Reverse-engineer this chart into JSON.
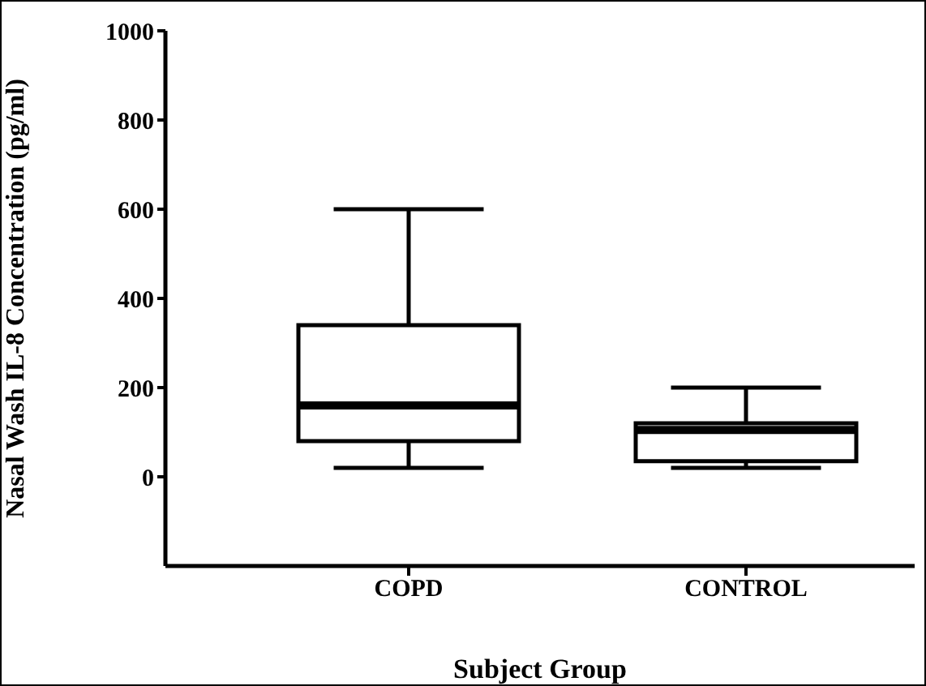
{
  "chart_data": {
    "type": "box",
    "xlabel": "Subject Group",
    "ylabel": "Nasal Wash IL-8 Concentration (pg/ml)",
    "categories": [
      "COPD",
      "CONTROL"
    ],
    "color": "#000000",
    "boxes": [
      {
        "low": 20,
        "q1": 80,
        "median": 160,
        "q3": 340,
        "high": 600
      },
      {
        "low": 20,
        "q1": 35,
        "median": 105,
        "q3": 120,
        "high": 200
      }
    ],
    "ylim": [
      -200,
      1000
    ],
    "yticks": [
      0,
      200,
      400,
      600,
      800,
      1000
    ]
  }
}
